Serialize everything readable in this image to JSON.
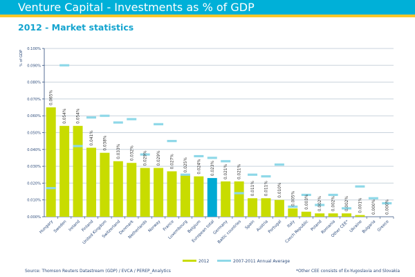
{
  "header": {
    "title": "Venture Capital - Investments as % of GDP",
    "subtitle": "2012 - Market statistics"
  },
  "footer": {
    "source": "Source: Thomson Reuters Datastream (GDP) / EVCA / PEREP_Analytics",
    "note": "*Other CEE consists of Ex-Yugoslavia and Slovakia"
  },
  "colors": {
    "header_bg": "#00b0d8",
    "header_accent": "#fcc72a",
    "bar_2012": "#c8dc00",
    "bar_highlight": "#00aad4",
    "average_marker": "#8ed8e8",
    "grid": "#c8d2dc",
    "axis": "#2b4a7a"
  },
  "chart_data": {
    "type": "bar",
    "title": "",
    "xlabel": "",
    "ylabel": "% of GDP",
    "ylim": [
      0,
      0.1
    ],
    "yticks": [
      "0.000%",
      "0.010%",
      "0.020%",
      "0.030%",
      "0.040%",
      "0.050%",
      "0.060%",
      "0.070%",
      "0.080%",
      "0.090%",
      "0.100%"
    ],
    "grid": true,
    "legend_position": "bottom",
    "highlight_category": "European total",
    "categories": [
      "Hungary",
      "Sweden",
      "Ireland",
      "Finland",
      "United Kingdom",
      "Switzerland",
      "Denmark",
      "Netherlands",
      "Norway",
      "France",
      "Luxembourg",
      "Belgium",
      "European total",
      "Germany",
      "Baltic countries",
      "Spain",
      "Austria",
      "Portugal",
      "Italy",
      "Czech Republic",
      "Poland",
      "Romania",
      "Other CEE*",
      "Ukraine",
      "Bulgaria",
      "Greece"
    ],
    "series": [
      {
        "name": "2012",
        "kind": "bar",
        "values": [
          0.065,
          0.054,
          0.054,
          0.041,
          0.038,
          0.033,
          0.032,
          0.029,
          0.029,
          0.027,
          0.025,
          0.024,
          0.023,
          0.021,
          0.021,
          0.011,
          0.011,
          0.01,
          0.005,
          0.003,
          0.002,
          0.002,
          0.002,
          0.001,
          0.0,
          0.0
        ],
        "labels": [
          "0.065%",
          "0.054%",
          "0.054%",
          "0.041%",
          "0.038%",
          "0.033%",
          "0.032%",
          "0.029%",
          "0.029%",
          "0.027%",
          "0.025%",
          "0.024%",
          "0.023%",
          "0.021%",
          "0.021%",
          "0.011%",
          "0.011%",
          "0.010%",
          "0.005%",
          "0.003%",
          "0.002%",
          "0.002%",
          "0.002%",
          "0.001%",
          "0.000%",
          "0.000%"
        ]
      },
      {
        "name": "2007-2011 Annual Average",
        "kind": "marker",
        "values": [
          0.017,
          0.09,
          0.042,
          0.059,
          0.06,
          0.056,
          0.058,
          0.037,
          0.055,
          0.045,
          0.025,
          0.036,
          0.035,
          0.033,
          0.014,
          0.025,
          0.024,
          0.031,
          0.006,
          0.013,
          0.007,
          0.013,
          0.005,
          0.018,
          0.011,
          0.008
        ]
      }
    ]
  }
}
